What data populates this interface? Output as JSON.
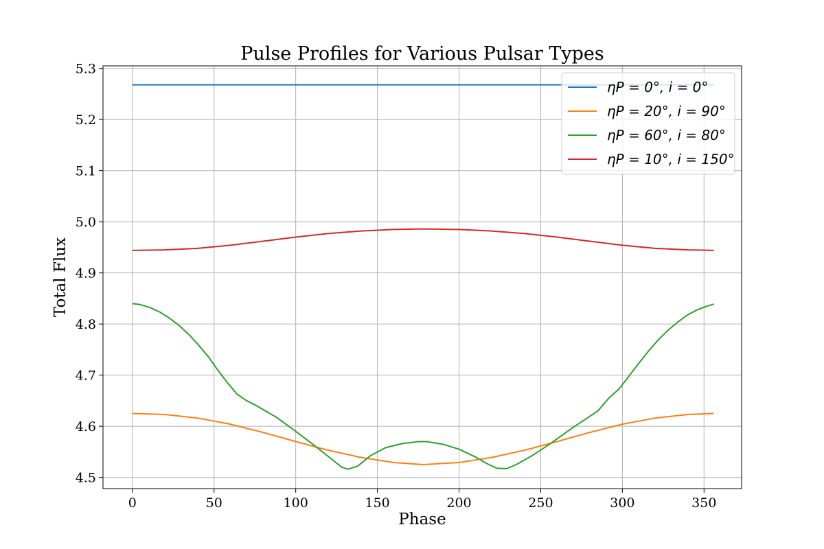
{
  "chart_data": {
    "type": "line",
    "title": "Pulse Profiles for Various Pulsar Types",
    "xlabel": "Phase",
    "ylabel": "Total Flux",
    "xlim": [
      -18,
      373
    ],
    "ylim": [
      4.478,
      5.305
    ],
    "xticks": [
      0,
      50,
      100,
      150,
      200,
      250,
      300,
      350
    ],
    "yticks": [
      4.5,
      4.6,
      4.7,
      4.8,
      4.9,
      5.0,
      5.1,
      5.2,
      5.3
    ],
    "xtick_labels": [
      "0",
      "50",
      "100",
      "150",
      "200",
      "250",
      "300",
      "350"
    ],
    "ytick_labels": [
      "4.5",
      "4.6",
      "4.7",
      "4.8",
      "4.9",
      "5.0",
      "5.1",
      "5.2",
      "5.3"
    ],
    "grid": true,
    "legend_position": "top-right",
    "series": [
      {
        "name": "ηP = 0°, i = 0°",
        "color": "#1f77b4",
        "x": [
          0,
          356
        ],
        "y": [
          5.268,
          5.268
        ]
      },
      {
        "name": "ηP = 20°, i = 90°",
        "color": "#ff7f0e",
        "x": [
          0,
          20,
          40,
          60,
          80,
          100,
          120,
          140,
          160,
          178,
          200,
          220,
          240,
          260,
          280,
          300,
          320,
          340,
          356
        ],
        "y": [
          4.625,
          4.623,
          4.616,
          4.604,
          4.588,
          4.57,
          4.553,
          4.539,
          4.529,
          4.525,
          4.529,
          4.539,
          4.553,
          4.57,
          4.588,
          4.604,
          4.616,
          4.623,
          4.625
        ]
      },
      {
        "name": "ηP = 60°, i = 80°",
        "color": "#2ca02c",
        "x": [
          0,
          5,
          11,
          17,
          23,
          29,
          35,
          41,
          47,
          52,
          58,
          64,
          70,
          76,
          88,
          100,
          112,
          123,
          128,
          132,
          138,
          146,
          155,
          165,
          175,
          180,
          190,
          200,
          210,
          217,
          223,
          229,
          235,
          245,
          255,
          270,
          285,
          292,
          298,
          304,
          310,
          316,
          322,
          328,
          334,
          340,
          346,
          351,
          356
        ],
        "y": [
          4.84,
          4.838,
          4.832,
          4.823,
          4.811,
          4.796,
          4.778,
          4.757,
          4.734,
          4.711,
          4.686,
          4.663,
          4.65,
          4.64,
          4.618,
          4.59,
          4.561,
          4.533,
          4.52,
          4.516,
          4.522,
          4.543,
          4.558,
          4.566,
          4.57,
          4.57,
          4.565,
          4.555,
          4.54,
          4.527,
          4.518,
          4.517,
          4.525,
          4.543,
          4.564,
          4.598,
          4.63,
          4.656,
          4.673,
          4.698,
          4.723,
          4.747,
          4.769,
          4.788,
          4.804,
          4.818,
          4.828,
          4.834,
          4.839
        ]
      },
      {
        "name": "ηP = 10°, i = 150°",
        "color": "#d62728",
        "x": [
          0,
          20,
          40,
          60,
          80,
          100,
          120,
          140,
          160,
          178,
          200,
          220,
          240,
          260,
          280,
          300,
          320,
          340,
          356
        ],
        "y": [
          4.944,
          4.945,
          4.948,
          4.954,
          4.962,
          4.97,
          4.977,
          4.982,
          4.985,
          4.986,
          4.985,
          4.982,
          4.977,
          4.97,
          4.962,
          4.954,
          4.948,
          4.945,
          4.944
        ]
      }
    ]
  }
}
